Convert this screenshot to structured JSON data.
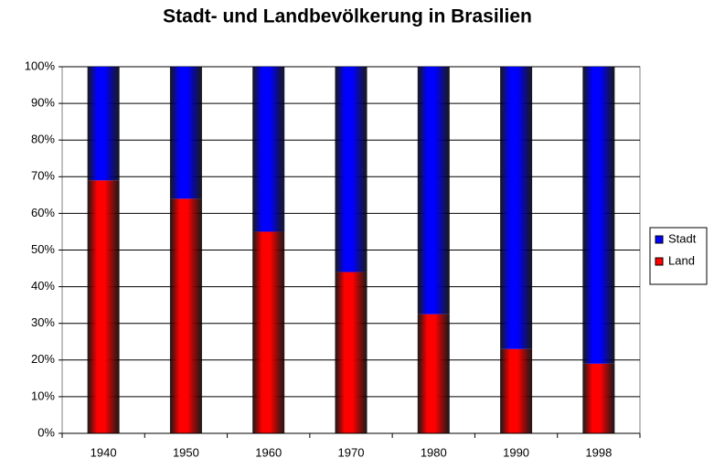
{
  "chart_data": {
    "type": "stacked_bar",
    "title": "Stadt- und Landbevölkerung in Brasilien",
    "categories": [
      "1940",
      "1950",
      "1960",
      "1970",
      "1980",
      "1990",
      "1998"
    ],
    "series": [
      {
        "name": "Stadt",
        "color": "#0000ff",
        "values": [
          31,
          36,
          45,
          56,
          67.5,
          77,
          81
        ]
      },
      {
        "name": "Land",
        "color": "#ff0000",
        "values": [
          69,
          64,
          55,
          44,
          32.5,
          23,
          19
        ]
      }
    ],
    "ylim": [
      0,
      100
    ],
    "yticks": [
      {
        "value": 0,
        "label": "0%"
      },
      {
        "value": 10,
        "label": "10%"
      },
      {
        "value": 20,
        "label": "20%"
      },
      {
        "value": 30,
        "label": "30%"
      },
      {
        "value": 40,
        "label": "40%"
      },
      {
        "value": 50,
        "label": "50%"
      },
      {
        "value": 60,
        "label": "60%"
      },
      {
        "value": 70,
        "label": "70%"
      },
      {
        "value": 80,
        "label": "80%"
      },
      {
        "value": 90,
        "label": "90%"
      },
      {
        "value": 100,
        "label": "100%"
      }
    ],
    "grid": true,
    "legend": "right"
  }
}
